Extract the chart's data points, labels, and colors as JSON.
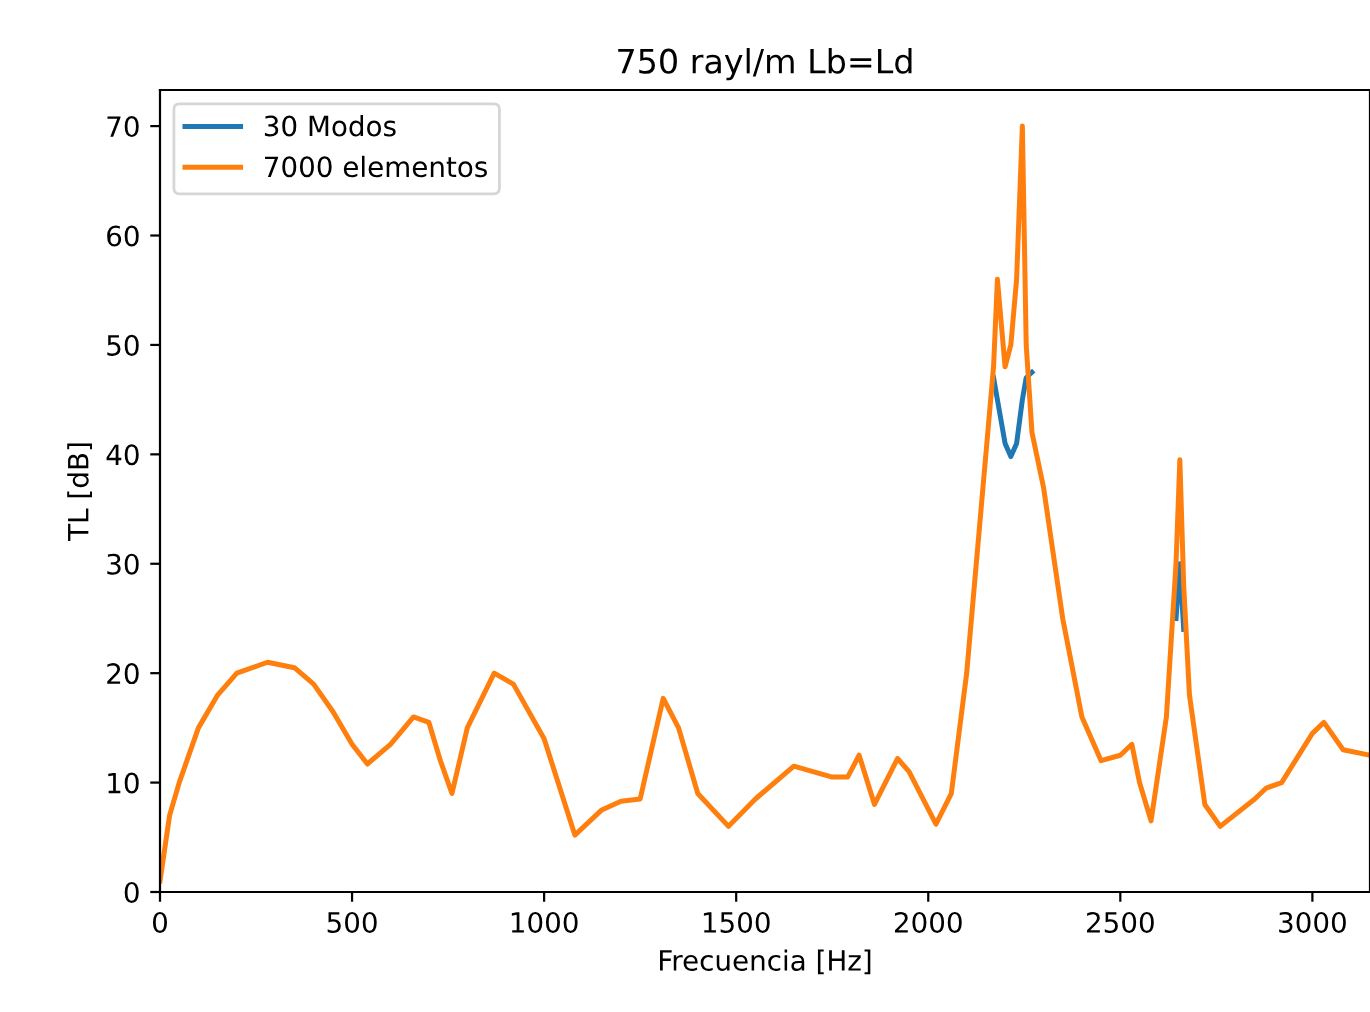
{
  "chart_data": {
    "type": "line",
    "title": "750 rayl/m Lb=Ld",
    "xlabel": "Frecuencia [Hz]",
    "ylabel": "TL [dB]",
    "x": [
      0,
      25,
      50,
      100,
      150,
      200,
      280,
      350,
      400,
      450,
      500,
      540,
      600,
      660,
      700,
      730,
      760,
      800,
      870,
      920,
      1000,
      1080,
      1150,
      1200,
      1250,
      1310,
      1350,
      1400,
      1480,
      1550,
      1650,
      1750,
      1790,
      1820,
      1860,
      1920,
      1950,
      2020,
      2060,
      2100,
      2150,
      2170,
      2180,
      2200,
      2215,
      2230,
      2245,
      2255,
      2270,
      2300,
      2350,
      2400,
      2450,
      2500,
      2530,
      2550,
      2580,
      2620,
      2645,
      2655,
      2665,
      2680,
      2720,
      2760,
      2850,
      2880,
      2920,
      3000,
      3030,
      3080,
      3150
    ],
    "series": [
      {
        "name": "30 Modos",
        "color": "#1f77b4",
        "values": [
          null,
          null,
          null,
          null,
          null,
          null,
          null,
          null,
          null,
          null,
          null,
          null,
          null,
          null,
          null,
          null,
          null,
          null,
          null,
          null,
          null,
          null,
          null,
          null,
          null,
          null,
          null,
          null,
          null,
          null,
          null,
          null,
          null,
          null,
          null,
          null,
          null,
          null,
          null,
          null,
          null,
          47,
          45,
          41,
          39.8,
          41,
          45,
          47,
          47.5,
          null,
          null,
          null,
          null,
          null,
          null,
          null,
          null,
          null,
          25,
          30,
          24,
          null,
          null,
          null,
          null,
          null,
          null,
          null,
          null,
          null,
          null
        ]
      },
      {
        "name": "7000 elementos",
        "color": "#ff7f0e",
        "values": [
          1,
          7,
          10,
          15,
          18,
          20,
          21,
          20.5,
          19,
          16.5,
          13.5,
          11.7,
          13.5,
          16,
          15.5,
          12,
          9,
          15,
          20,
          19,
          14,
          5.2,
          7.5,
          8.3,
          8.5,
          17.7,
          15,
          9,
          6,
          8.5,
          11.5,
          10.5,
          10.5,
          12.5,
          8,
          12.2,
          11,
          6.2,
          9,
          20,
          40,
          48,
          56,
          48,
          50,
          56,
          70,
          50,
          42,
          37,
          25,
          16,
          12,
          12.5,
          13.5,
          10,
          6.5,
          16,
          30,
          39.5,
          28,
          18,
          8,
          6,
          8.5,
          9.5,
          10,
          14.5,
          15.5,
          13,
          12.5
        ]
      }
    ],
    "xlim": [
      0,
      3150
    ],
    "ylim": [
      0,
      73.3
    ],
    "xticks": [
      0,
      500,
      1000,
      1500,
      2000,
      2500,
      3000
    ],
    "yticks": [
      0,
      10,
      20,
      30,
      40,
      50,
      60,
      70
    ],
    "grid": false,
    "legend": "top left"
  }
}
